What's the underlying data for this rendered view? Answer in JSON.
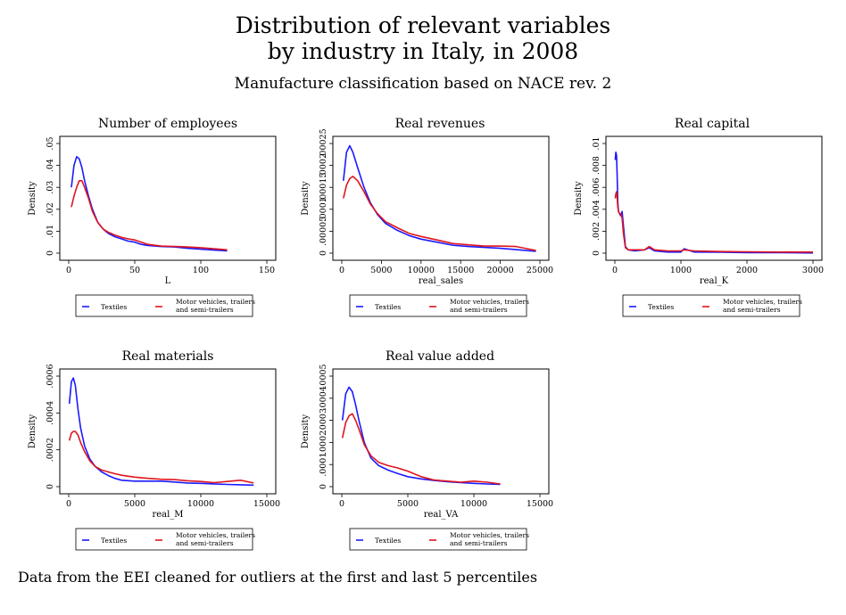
{
  "title_line1": "Distribution of relevant variables",
  "title_line2": "by industry in Italy, in 2008",
  "subtitle": "Manufacture classification based on NACE rev. 2",
  "note": "Data from the EEI cleaned for outliers at the first and last 5 percentiles",
  "colors": {
    "textiles": "#1a1aff",
    "motor": "#e0141e"
  },
  "chart_data": [
    {
      "type": "line",
      "title": "Number of employees",
      "xlabel": "L",
      "ylabel": "Density",
      "xlim": [
        0,
        150
      ],
      "ylim": [
        0,
        0.05
      ],
      "xticks": [
        0,
        50,
        100,
        150
      ],
      "xtick_labels": [
        "0",
        "50",
        "100",
        "150"
      ],
      "yticks": [
        0,
        0.01,
        0.02,
        0.03,
        0.04,
        0.05
      ],
      "ytick_labels": [
        "0",
        ".01",
        ".02",
        ".03",
        ".04",
        ".05"
      ],
      "legend": [
        "Textiles",
        "Motor vehicles, trailers",
        "and semi-trailers"
      ],
      "series": [
        {
          "name": "Textiles",
          "color": "#1a1aff",
          "x": [
            2,
            4,
            6,
            8,
            10,
            12,
            15,
            18,
            22,
            26,
            30,
            35,
            40,
            45,
            50,
            55,
            60,
            70,
            80,
            90,
            100,
            110,
            120
          ],
          "y": [
            0.03,
            0.04,
            0.044,
            0.043,
            0.039,
            0.033,
            0.026,
            0.02,
            0.014,
            0.011,
            0.009,
            0.0075,
            0.0065,
            0.0055,
            0.005,
            0.004,
            0.0035,
            0.003,
            0.0028,
            0.0022,
            0.0018,
            0.0014,
            0.001
          ]
        },
        {
          "name": "Motor vehicles, trailers and semi-trailers",
          "color": "#e0141e",
          "x": [
            2,
            4,
            6,
            8,
            10,
            12,
            15,
            18,
            22,
            26,
            30,
            35,
            40,
            45,
            50,
            55,
            60,
            70,
            80,
            90,
            100,
            110,
            120
          ],
          "y": [
            0.021,
            0.026,
            0.03,
            0.033,
            0.033,
            0.03,
            0.025,
            0.019,
            0.014,
            0.011,
            0.0095,
            0.0082,
            0.0072,
            0.0065,
            0.006,
            0.005,
            0.004,
            0.0032,
            0.003,
            0.0028,
            0.0025,
            0.002,
            0.0015
          ]
        }
      ]
    },
    {
      "type": "line",
      "title": "Real revenues",
      "xlabel": "real_sales",
      "ylabel": "Density",
      "xlim": [
        0,
        25000
      ],
      "ylim": [
        0,
        0.00025
      ],
      "xticks": [
        0,
        5000,
        10000,
        15000,
        20000,
        25000
      ],
      "xtick_labels": [
        "0",
        "5000",
        "10000",
        "15000",
        "20000",
        "25000"
      ],
      "yticks": [
        0,
        5e-05,
        0.0001,
        0.00015,
        0.0002,
        0.00025
      ],
      "ytick_labels": [
        "0",
        ".00005",
        ".0001",
        ".00015",
        ".0002",
        ".00025"
      ],
      "legend": [
        "Textiles",
        "Motor vehicles, trailers",
        "and semi-trailers"
      ],
      "series": [
        {
          "name": "Textiles",
          "color": "#1a1aff",
          "x": [
            200,
            600,
            1000,
            1400,
            2000,
            2800,
            3600,
            4500,
            5500,
            7000,
            8500,
            10000,
            12000,
            14000,
            16000,
            18000,
            20000,
            22000,
            24500
          ],
          "y": [
            0.000165,
            0.00023,
            0.000245,
            0.00023,
            0.000195,
            0.00015,
            0.000115,
            8.8e-05,
            6.8e-05,
            5.2e-05,
            4e-05,
            3.2e-05,
            2.5e-05,
            1.8e-05,
            1.5e-05,
            1.3e-05,
            1.1e-05,
            8e-06,
            4e-06
          ]
        },
        {
          "name": "Motor vehicles, trailers and semi-trailers",
          "color": "#e0141e",
          "x": [
            200,
            600,
            1000,
            1400,
            2000,
            2800,
            3600,
            4500,
            5500,
            7000,
            8500,
            10000,
            12000,
            14000,
            16000,
            18000,
            20000,
            22000,
            24500
          ],
          "y": [
            0.000125,
            0.000155,
            0.00017,
            0.000175,
            0.000165,
            0.00014,
            0.000112,
            9e-05,
            7.2e-05,
            5.8e-05,
            4.5e-05,
            3.8e-05,
            3e-05,
            2.2e-05,
            1.9e-05,
            1.6e-05,
            1.6e-05,
            1.5e-05,
            6e-06
          ]
        }
      ]
    },
    {
      "type": "line",
      "title": "Real capital",
      "xlabel": "real_K",
      "ylabel": "Density",
      "xlim": [
        0,
        3000
      ],
      "ylim": [
        0,
        0.01
      ],
      "xticks": [
        0,
        1000,
        2000,
        3000
      ],
      "xtick_labels": [
        "0",
        "1000",
        "2000",
        "3000"
      ],
      "yticks": [
        0,
        0.002,
        0.004,
        0.006,
        0.008,
        0.01
      ],
      "ytick_labels": [
        "0",
        ".002",
        ".004",
        ".006",
        ".008",
        ".01"
      ],
      "legend": [
        "Textiles",
        "Motor vehicles, trailers",
        "and semi-trailers"
      ],
      "series": [
        {
          "name": "Textiles",
          "color": "#1a1aff",
          "x": [
            5,
            15,
            25,
            35,
            45,
            55,
            70,
            90,
            110,
            130,
            160,
            200,
            300,
            450,
            520,
            600,
            800,
            1000,
            1050,
            1200,
            1600,
            2000,
            2500,
            3000
          ],
          "y": [
            0.0085,
            0.0092,
            0.0089,
            0.007,
            0.0046,
            0.0038,
            0.0036,
            0.0034,
            0.0038,
            0.0025,
            0.0006,
            0.0003,
            0.0002,
            0.0003,
            0.0005,
            0.0002,
            0.0001,
            0.0001,
            0.0004,
            0.0001,
            8e-05,
            5e-05,
            4e-05,
            2e-05
          ]
        },
        {
          "name": "Motor vehicles, trailers and semi-trailers",
          "color": "#e0141e",
          "x": [
            5,
            15,
            25,
            35,
            45,
            55,
            70,
            90,
            110,
            130,
            160,
            200,
            300,
            450,
            520,
            600,
            800,
            1000,
            1050,
            1200,
            1600,
            2000,
            2500,
            3000
          ],
          "y": [
            0.005,
            0.0054,
            0.0056,
            0.005,
            0.0042,
            0.0038,
            0.0036,
            0.0036,
            0.0032,
            0.0018,
            0.0005,
            0.0003,
            0.0003,
            0.0003,
            0.0006,
            0.0003,
            0.0002,
            0.0002,
            0.0003,
            0.0002,
            0.00015,
            0.00012,
            0.0001,
            0.0001
          ]
        }
      ]
    },
    {
      "type": "line",
      "title": "Real materials",
      "xlabel": "real_M",
      "ylabel": "Density",
      "xlim": [
        0,
        15000
      ],
      "ylim": [
        0,
        0.0006
      ],
      "xticks": [
        0,
        5000,
        10000,
        15000
      ],
      "xtick_labels": [
        "0",
        "5000",
        "10000",
        "15000"
      ],
      "yticks": [
        0,
        0.0002,
        0.0004,
        0.0006
      ],
      "ytick_labels": [
        "0",
        ".0002",
        ".0004",
        ".0006"
      ],
      "legend": [
        "Textiles",
        "Motor vehicles, trailers",
        "and semi-trailers"
      ],
      "series": [
        {
          "name": "Textiles",
          "color": "#1a1aff",
          "x": [
            50,
            200,
            350,
            500,
            700,
            900,
            1200,
            1600,
            2000,
            2500,
            3000,
            3500,
            4000,
            5000,
            6000,
            7000,
            8000,
            9000,
            10000,
            11000,
            12000,
            13000,
            14000
          ],
          "y": [
            0.00045,
            0.00057,
            0.00059,
            0.00055,
            0.00042,
            0.00032,
            0.00022,
            0.00015,
            0.00011,
            8e-05,
            6e-05,
            4.5e-05,
            3.5e-05,
            3e-05,
            3e-05,
            3e-05,
            2.5e-05,
            2e-05,
            1.8e-05,
            1.5e-05,
            1.2e-05,
            1e-05,
            8e-06
          ]
        },
        {
          "name": "Motor vehicles, trailers and semi-trailers",
          "color": "#e0141e",
          "x": [
            50,
            200,
            350,
            500,
            700,
            900,
            1200,
            1600,
            2000,
            2500,
            3000,
            3500,
            4000,
            5000,
            6000,
            7000,
            8000,
            9000,
            10000,
            11000,
            12000,
            13000,
            14000
          ],
          "y": [
            0.00025,
            0.00029,
            0.0003,
            0.0003,
            0.00028,
            0.00024,
            0.00019,
            0.00014,
            0.00011,
            9e-05,
            8e-05,
            7e-05,
            6.2e-05,
            5.2e-05,
            4.5e-05,
            4e-05,
            3.8e-05,
            3.2e-05,
            2.8e-05,
            2.2e-05,
            2.8e-05,
            3.5e-05,
            2e-05
          ]
        }
      ]
    },
    {
      "type": "line",
      "title": "Real value added",
      "xlabel": "real_VA",
      "ylabel": "Density",
      "xlim": [
        0,
        15000
      ],
      "ylim": [
        0,
        0.0005
      ],
      "xticks": [
        0,
        5000,
        10000,
        15000
      ],
      "xtick_labels": [
        "0",
        "5000",
        "10000",
        "15000"
      ],
      "yticks": [
        0,
        0.0001,
        0.0002,
        0.0003,
        0.0004,
        0.0005
      ],
      "ytick_labels": [
        "0",
        ".0001",
        ".0002",
        ".0003",
        ".0004",
        ".0005"
      ],
      "legend": [
        "Textiles",
        "Motor vehicles, trailers",
        "and semi-trailers"
      ],
      "series": [
        {
          "name": "Textiles",
          "color": "#1a1aff",
          "x": [
            50,
            300,
            550,
            800,
            1050,
            1300,
            1700,
            2200,
            2800,
            3500,
            4200,
            5000,
            6000,
            7000,
            8000,
            9000,
            10000,
            11000,
            12000
          ],
          "y": [
            0.0003,
            0.00042,
            0.00045,
            0.00043,
            0.00037,
            0.0003,
            0.0002,
            0.00013,
            9.5e-05,
            7.5e-05,
            6e-05,
            4.5e-05,
            3.5e-05,
            2.8e-05,
            2.2e-05,
            1.8e-05,
            1.5e-05,
            1.2e-05,
            1e-05
          ]
        },
        {
          "name": "Motor vehicles, trailers and semi-trailers",
          "color": "#e0141e",
          "x": [
            50,
            300,
            550,
            800,
            1050,
            1300,
            1700,
            2200,
            2800,
            3500,
            4200,
            5000,
            6000,
            7000,
            8000,
            9000,
            10000,
            11000,
            12000
          ],
          "y": [
            0.00022,
            0.00029,
            0.00032,
            0.00033,
            0.0003,
            0.00026,
            0.00019,
            0.00014,
            0.00011,
            9.5e-05,
            8.5e-05,
            7e-05,
            4.5e-05,
            3e-05,
            2.5e-05,
            2e-05,
            2.5e-05,
            2e-05,
            1.2e-05
          ]
        }
      ]
    }
  ]
}
